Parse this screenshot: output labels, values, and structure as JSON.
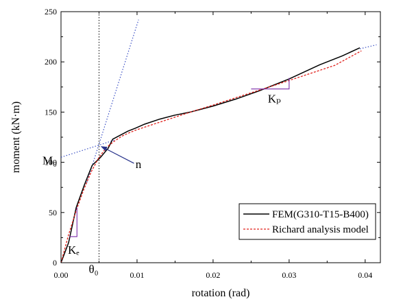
{
  "chart_data": {
    "type": "line",
    "xlabel": "rotation (rad)",
    "ylabel": "moment (kN·m)",
    "xlim": [
      0,
      0.042
    ],
    "ylim": [
      0,
      250
    ],
    "x_ticks": [
      0,
      0.01,
      0.02,
      0.03,
      0.04
    ],
    "x_tick_labels": [
      "0.00",
      "0.01",
      "0.02",
      "0.03",
      "0.04"
    ],
    "y_ticks": [
      0,
      50,
      100,
      150,
      200,
      250
    ],
    "y_tick_labels": [
      "0",
      "50",
      "100",
      "150",
      "200",
      "250"
    ],
    "grid": false,
    "legend_position": "lower-right",
    "series": [
      {
        "name": "FEM(G310-T15-B400)",
        "color": "#000000",
        "style": "solid",
        "x": [
          0.0,
          0.001,
          0.002,
          0.0031,
          0.0041,
          0.0052,
          0.0062,
          0.0068,
          0.0078,
          0.0088,
          0.0098,
          0.011,
          0.013,
          0.015,
          0.017,
          0.02,
          0.023,
          0.026,
          0.03,
          0.034,
          0.037,
          0.0393
        ],
        "y": [
          0,
          20,
          55,
          78,
          97,
          105,
          114,
          123,
          127,
          131,
          134,
          138,
          143,
          147,
          150,
          156,
          163,
          171,
          183,
          197,
          206,
          214
        ]
      },
      {
        "name": "Richard analysis model",
        "color": "#e0201b",
        "style": "dashed",
        "x": [
          0.0,
          0.001,
          0.002,
          0.003,
          0.004,
          0.005,
          0.006,
          0.007,
          0.008,
          0.009,
          0.01,
          0.012,
          0.014,
          0.016,
          0.018,
          0.02,
          0.024,
          0.028,
          0.032,
          0.036,
          0.0395
        ],
        "y": [
          0,
          28,
          52,
          73,
          91,
          105,
          115,
          121,
          126,
          129.5,
          132.5,
          137.5,
          142.5,
          147.5,
          152.3,
          157,
          166.8,
          176.5,
          186.5,
          196.5,
          211
        ]
      }
    ],
    "annotations": {
      "M0": {
        "label": "M₀",
        "value": 105
      },
      "theta0": {
        "label": "θ₀",
        "value": 0.005
      },
      "n": {
        "label": "n"
      },
      "Ke": {
        "label": "Kₑ"
      },
      "Kp": {
        "label": "Kₚ"
      }
    }
  }
}
